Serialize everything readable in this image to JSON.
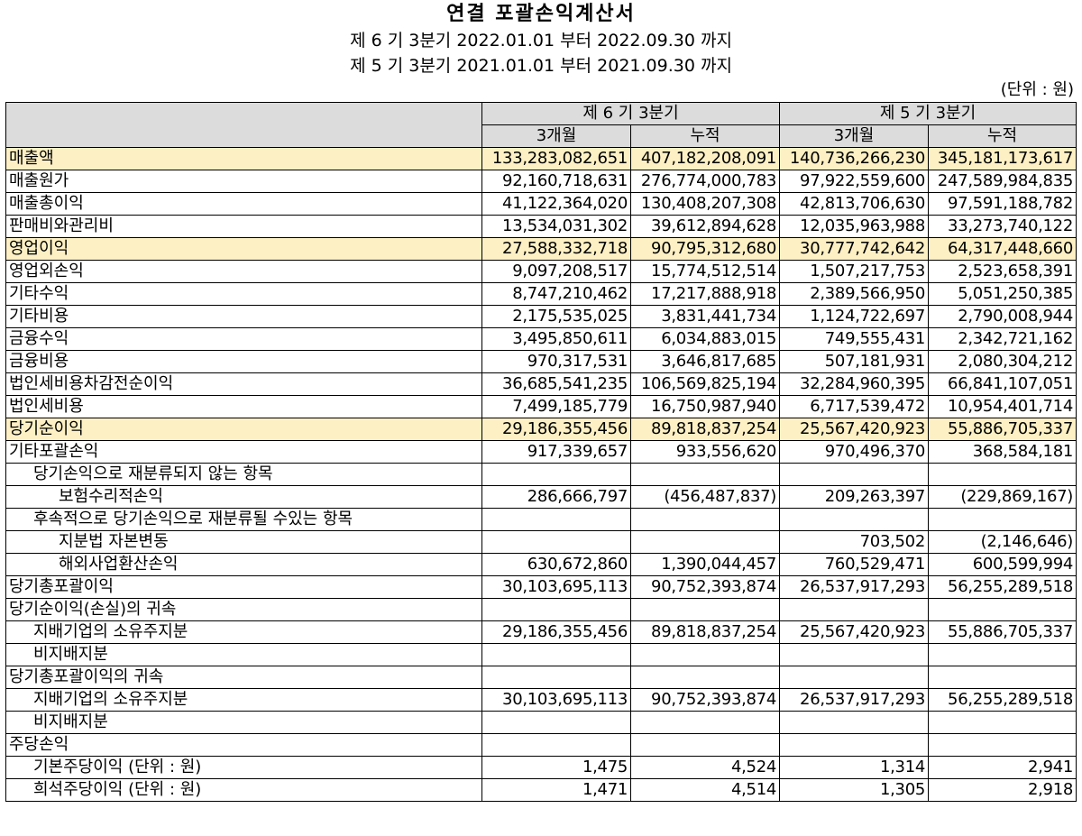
{
  "title": "연결 포괄손익계산서",
  "period_current": "제 6 기 3분기 2022.01.01 부터 2022.09.30 까지",
  "period_prior": "제 5 기 3분기 2021.01.01 부터 2021.09.30 까지",
  "unit_note": "(단위 : 원)",
  "colors": {
    "highlight_row": "#fdf0c4",
    "header_bg": "#dcdcdc"
  },
  "columns": {
    "current_period": "제 6 기 3분기",
    "prior_period": "제 5 기 3분기",
    "three_month": "3개월",
    "cumulative": "누적"
  },
  "rows": [
    {
      "label": "매출액",
      "c3": "133,283,082,651",
      "ccum": "407,182,208,091",
      "p3": "140,736,266,230",
      "pcum": "345,181,173,617",
      "highlight": true
    },
    {
      "label": "매출원가",
      "c3": "92,160,718,631",
      "ccum": "276,774,000,783",
      "p3": "97,922,559,600",
      "pcum": "247,589,984,835"
    },
    {
      "label": "매출총이익",
      "c3": "41,122,364,020",
      "ccum": "130,408,207,308",
      "p3": "42,813,706,630",
      "pcum": "97,591,188,782"
    },
    {
      "label": "판매비와관리비",
      "c3": "13,534,031,302",
      "ccum": "39,612,894,628",
      "p3": "12,035,963,988",
      "pcum": "33,273,740,122"
    },
    {
      "label": "영업이익",
      "c3": "27,588,332,718",
      "ccum": "90,795,312,680",
      "p3": "30,777,742,642",
      "pcum": "64,317,448,660",
      "highlight": true
    },
    {
      "label": "영업외손익",
      "c3": "9,097,208,517",
      "ccum": "15,774,512,514",
      "p3": "1,507,217,753",
      "pcum": "2,523,658,391"
    },
    {
      "label": "기타수익",
      "c3": "8,747,210,462",
      "ccum": "17,217,888,918",
      "p3": "2,389,566,950",
      "pcum": "5,051,250,385"
    },
    {
      "label": "기타비용",
      "c3": "2,175,535,025",
      "ccum": "3,831,441,734",
      "p3": "1,124,722,697",
      "pcum": "2,790,008,944"
    },
    {
      "label": "금융수익",
      "c3": "3,495,850,611",
      "ccum": "6,034,883,015",
      "p3": "749,555,431",
      "pcum": "2,342,721,162"
    },
    {
      "label": "금융비용",
      "c3": "970,317,531",
      "ccum": "3,646,817,685",
      "p3": "507,181,931",
      "pcum": "2,080,304,212"
    },
    {
      "label": "법인세비용차감전순이익",
      "c3": "36,685,541,235",
      "ccum": "106,569,825,194",
      "p3": "32,284,960,395",
      "pcum": "66,841,107,051"
    },
    {
      "label": "법인세비용",
      "c3": "7,499,185,779",
      "ccum": "16,750,987,940",
      "p3": "6,717,539,472",
      "pcum": "10,954,401,714"
    },
    {
      "label": "당기순이익",
      "c3": "29,186,355,456",
      "ccum": "89,818,837,254",
      "p3": "25,567,420,923",
      "pcum": "55,886,705,337",
      "highlight": true
    },
    {
      "label": "기타포괄손익",
      "c3": "917,339,657",
      "ccum": "933,556,620",
      "p3": "970,496,370",
      "pcum": "368,584,181"
    },
    {
      "label": "당기손익으로 재분류되지 않는 항목",
      "c3": "",
      "ccum": "",
      "p3": "",
      "pcum": "",
      "indent": 1
    },
    {
      "label": "보험수리적손익",
      "c3": "286,666,797",
      "ccum": "(456,487,837)",
      "p3": "209,263,397",
      "pcum": "(229,869,167)",
      "indent": 2
    },
    {
      "label": "후속적으로 당기손익으로 재분류될 수있는 항목",
      "c3": "",
      "ccum": "",
      "p3": "",
      "pcum": "",
      "indent": 1
    },
    {
      "label": "지분법 자본변동",
      "c3": "",
      "ccum": "",
      "p3": "703,502",
      "pcum": "(2,146,646)",
      "indent": 2
    },
    {
      "label": "해외사업환산손익",
      "c3": "630,672,860",
      "ccum": "1,390,044,457",
      "p3": "760,529,471",
      "pcum": "600,599,994",
      "indent": 2
    },
    {
      "label": "당기총포괄이익",
      "c3": "30,103,695,113",
      "ccum": "90,752,393,874",
      "p3": "26,537,917,293",
      "pcum": "56,255,289,518"
    },
    {
      "label": "당기순이익(손실)의 귀속",
      "c3": "",
      "ccum": "",
      "p3": "",
      "pcum": ""
    },
    {
      "label": "지배기업의 소유주지분",
      "c3": "29,186,355,456",
      "ccum": "89,818,837,254",
      "p3": "25,567,420,923",
      "pcum": "55,886,705,337",
      "indent": 1
    },
    {
      "label": "비지배지분",
      "c3": "",
      "ccum": "",
      "p3": "",
      "pcum": "",
      "indent": 1
    },
    {
      "label": "당기총포괄이익의 귀속",
      "c3": "",
      "ccum": "",
      "p3": "",
      "pcum": ""
    },
    {
      "label": "지배기업의 소유주지분",
      "c3": "30,103,695,113",
      "ccum": "90,752,393,874",
      "p3": "26,537,917,293",
      "pcum": "56,255,289,518",
      "indent": 1
    },
    {
      "label": "비지배지분",
      "c3": "",
      "ccum": "",
      "p3": "",
      "pcum": "",
      "indent": 1
    },
    {
      "label": "주당손익",
      "c3": "",
      "ccum": "",
      "p3": "",
      "pcum": ""
    },
    {
      "label": "기본주당이익 (단위 : 원)",
      "c3": "1,475",
      "ccum": "4,524",
      "p3": "1,314",
      "pcum": "2,941",
      "indent": 1
    },
    {
      "label": "희석주당이익 (단위 : 원)",
      "c3": "1,471",
      "ccum": "4,514",
      "p3": "1,305",
      "pcum": "2,918",
      "indent": 1
    }
  ]
}
